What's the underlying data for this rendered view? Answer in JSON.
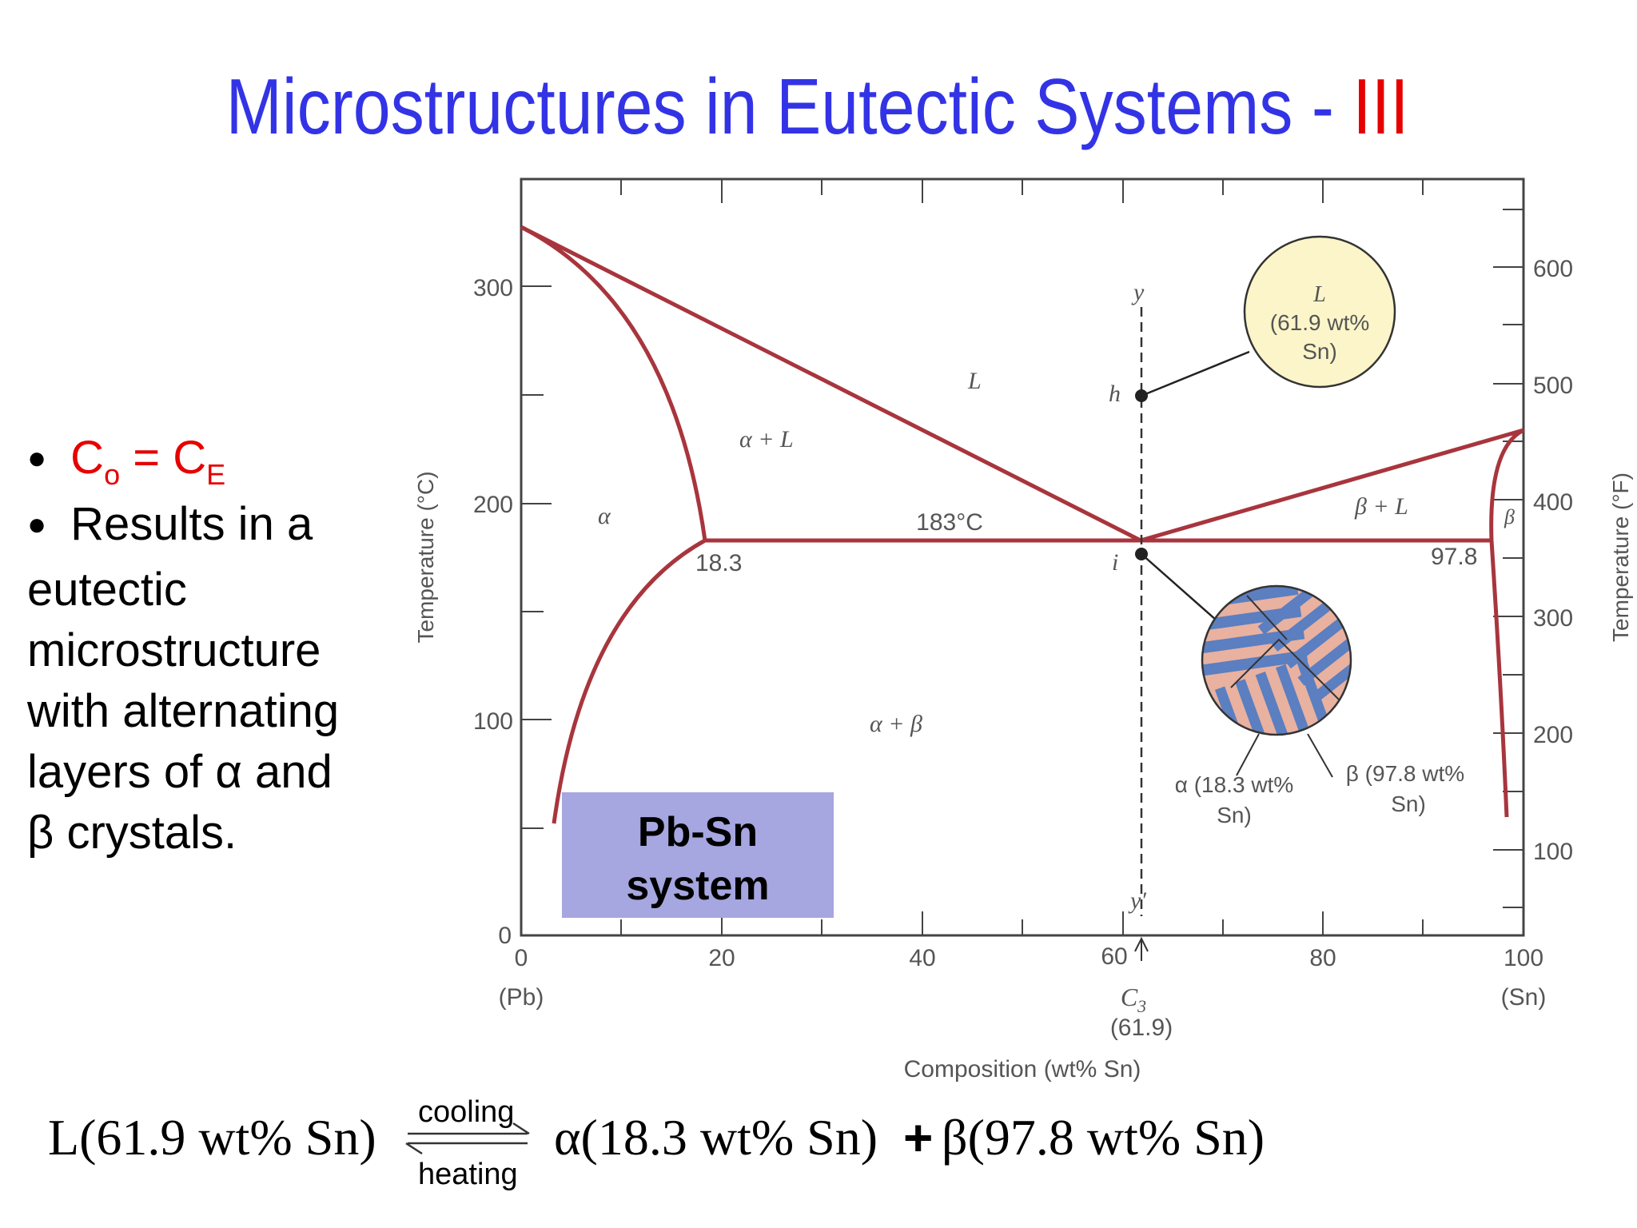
{
  "title": {
    "main": "Microstructures in Eutectic Systems - ",
    "numeral": "III"
  },
  "bullets": {
    "b1_pre": "C",
    "b1_sub1": "o",
    "b1_mid": " = C",
    "b1_sub2": "E",
    "b2_line1": "Results in a",
    "b2_rest": [
      "eutectic",
      "microstructure",
      "with alternating",
      "layers of α and",
      "β crystals."
    ]
  },
  "diagram": {
    "y_axis_label": "Temperature (°C)",
    "y2_axis_label": "Temperature (°F)",
    "x_axis_label": "Composition (wt% Sn)",
    "y_ticks": [
      "0",
      "100",
      "200",
      "300"
    ],
    "y2_ticks": [
      "100",
      "200",
      "300",
      "400",
      "500",
      "600"
    ],
    "x_ticks": [
      "0",
      "20",
      "40",
      "60",
      "80",
      "100"
    ],
    "x_end_labels": {
      "left": "(Pb)",
      "right": "(Sn)"
    },
    "c3_label": "C",
    "c3_sub": "3",
    "c3_value": "(61.9)",
    "regions": {
      "L": "L",
      "alpha_L": "α + L",
      "alpha": "α",
      "beta_L": "β + L",
      "beta": "β",
      "alpha_beta": "α + β"
    },
    "eutectic_temp_label": "183°C",
    "alpha_limit_label": "18.3",
    "beta_limit_label": "97.8",
    "line_labels": {
      "y": "y",
      "y_prime": "y′",
      "h": "h",
      "i": "i"
    },
    "liquid_circle": {
      "line1": "L",
      "line2": "(61.9 wt%",
      "line3": "Sn)"
    },
    "alpha_phase_label": {
      "line1": "α (18.3 wt%",
      "line2": "Sn)"
    },
    "beta_phase_label": {
      "line1": "β (97.8 wt%",
      "line2": "Sn)"
    },
    "system_box": {
      "line1": "Pb-Sn",
      "line2": "system"
    },
    "colors": {
      "phase_line": "#a8353d",
      "liquid_circle_fill": "#fbf5c9",
      "alpha_lamella": "#e9b1a0",
      "beta_lamella": "#5b7fc0",
      "system_box_fill": "#a6a6e0"
    }
  },
  "equation": {
    "left": "L(61.9 wt% Sn)",
    "arrow_top": "cooling",
    "arrow_bottom": "heating",
    "right_alpha": "α(18.3 wt% Sn)",
    "plus": "+",
    "right_beta": "β(97.8 wt% Sn)"
  }
}
